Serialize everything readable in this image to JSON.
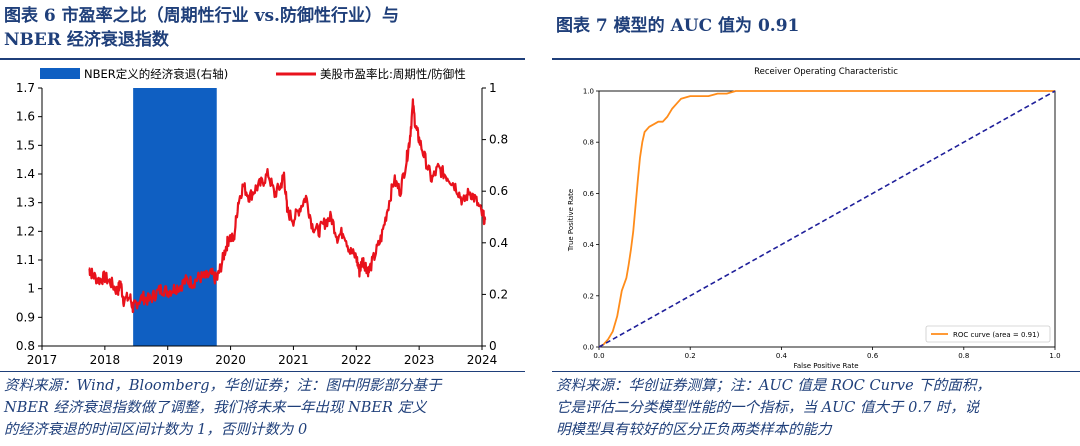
{
  "figure6": {
    "title_line1": "图表 6  市盈率之比（周期性行业 vs.防御性行业）与",
    "title_line2": "NBER 经济衰退指数",
    "source_line1": "资料来源：Wind，Bloomberg，华创证券；注：图中阴影部分基于",
    "source_line2": "NBER 经济衰退指数做了调整，我们将未来一年出现 NBER 定义",
    "source_line3": "的经济衰退的时间区间计数为 1，否则计数为 0"
  },
  "figure7": {
    "title": "图表 7  模型的 AUC 值为 0.91",
    "source_line1": "资料来源：华创证券测算；注：AUC 值是 ROC Curve 下的面积，",
    "source_line2": "它是评估二分类模型性能的一个指标，当 AUC 值大于 0.7 时，说",
    "source_line3": "明模型具有较好的区分正负两类样本的能力"
  },
  "chart_data": [
    {
      "type": "line",
      "legend": [
        "NBER定义的经济衰退(右轴)",
        "美股市盈率比:周期性/防御性"
      ],
      "legend_placement": "top",
      "x_ticks": [
        "2017",
        "2018",
        "2019",
        "2020",
        "2021",
        "2022",
        "2023",
        "2024"
      ],
      "xlim": [
        2017,
        2024
      ],
      "y_left_ticks": [
        "0.8",
        "0.9",
        "1",
        "1.1",
        "1.2",
        "1.3",
        "1.4",
        "1.5",
        "1.6",
        "1.7"
      ],
      "ylim_left": [
        0.8,
        1.7
      ],
      "y_right_ticks": [
        "0",
        "0.2",
        "0.4",
        "0.6",
        "0.8",
        "1"
      ],
      "ylim_right": [
        0,
        1
      ],
      "recession_band": {
        "series": "NBER定义的经济衰退(右轴)",
        "x_start": 2018.45,
        "x_end": 2019.78,
        "value": 1,
        "color": "#0f5fc2"
      },
      "series": [
        {
          "name": "美股市盈率比:周期性/防御性",
          "color": "#e8121c",
          "x": [
            2017.75,
            2017.8,
            2017.9,
            2018.0,
            2018.1,
            2018.2,
            2018.25,
            2018.3,
            2018.4,
            2018.45,
            2018.5,
            2018.6,
            2018.7,
            2018.8,
            2018.9,
            2019.0,
            2019.1,
            2019.2,
            2019.3,
            2019.4,
            2019.5,
            2019.6,
            2019.7,
            2019.78,
            2019.85,
            2019.92,
            2019.98,
            2020.05,
            2020.12,
            2020.2,
            2020.3,
            2020.4,
            2020.5,
            2020.6,
            2020.7,
            2020.8,
            2020.85,
            2020.9,
            2021.0,
            2021.1,
            2021.2,
            2021.3,
            2021.4,
            2021.5,
            2021.6,
            2021.7,
            2021.8,
            2021.9,
            2022.0,
            2022.05,
            2022.1,
            2022.15,
            2022.2,
            2022.3,
            2022.4,
            2022.5,
            2022.6,
            2022.7,
            2022.8,
            2022.85,
            2022.9,
            2022.95,
            2023.0,
            2023.1,
            2023.2,
            2023.3,
            2023.4,
            2023.5,
            2023.6,
            2023.7,
            2023.8,
            2023.9,
            2024.0,
            2024.05
          ],
          "values": [
            1.07,
            1.05,
            1.03,
            1.04,
            1.02,
            0.99,
            1.02,
            0.96,
            0.97,
            0.93,
            0.95,
            0.97,
            0.96,
            0.98,
            1.0,
            0.99,
            1.0,
            1.01,
            1.03,
            1.02,
            1.04,
            1.04,
            1.05,
            1.03,
            1.08,
            1.14,
            1.18,
            1.17,
            1.3,
            1.36,
            1.32,
            1.35,
            1.37,
            1.4,
            1.33,
            1.36,
            1.4,
            1.27,
            1.24,
            1.28,
            1.32,
            1.22,
            1.2,
            1.23,
            1.25,
            1.18,
            1.2,
            1.13,
            1.11,
            1.06,
            1.1,
            1.08,
            1.06,
            1.12,
            1.18,
            1.28,
            1.38,
            1.34,
            1.45,
            1.52,
            1.64,
            1.56,
            1.52,
            1.45,
            1.38,
            1.42,
            1.4,
            1.38,
            1.35,
            1.3,
            1.34,
            1.31,
            1.26,
            1.24
          ]
        }
      ]
    },
    {
      "type": "line",
      "title": "Receiver Operating Characteristic",
      "xlabel": "False Positive Rate",
      "ylabel": "True Positive Rate",
      "xlim": [
        0,
        1
      ],
      "ylim": [
        0,
        1
      ],
      "x_ticks": [
        "0.0",
        "0.2",
        "0.4",
        "0.6",
        "0.8",
        "1.0"
      ],
      "y_ticks": [
        "0.0",
        "0.2",
        "0.4",
        "0.6",
        "0.8",
        "1.0"
      ],
      "legend": "ROC curve (area = 0.91)",
      "legend_placement": "lower right",
      "series": [
        {
          "name": "ROC curve (area = 0.91)",
          "color": "#ff8c1a",
          "x": [
            0,
            0.01,
            0.02,
            0.03,
            0.04,
            0.05,
            0.06,
            0.065,
            0.07,
            0.075,
            0.08,
            0.085,
            0.09,
            0.095,
            0.1,
            0.11,
            0.12,
            0.13,
            0.14,
            0.15,
            0.16,
            0.17,
            0.18,
            0.2,
            0.22,
            0.24,
            0.26,
            0.28,
            0.3,
            0.5,
            0.7,
            1.0
          ],
          "y": [
            0,
            0.01,
            0.03,
            0.06,
            0.12,
            0.22,
            0.27,
            0.32,
            0.38,
            0.45,
            0.55,
            0.65,
            0.74,
            0.8,
            0.84,
            0.86,
            0.87,
            0.88,
            0.88,
            0.9,
            0.93,
            0.95,
            0.97,
            0.98,
            0.98,
            0.98,
            0.99,
            0.99,
            1.0,
            1.0,
            1.0,
            1.0
          ]
        },
        {
          "name": "",
          "color": "#1f1f9a",
          "dashed": true,
          "x": [
            0,
            1
          ],
          "y": [
            0,
            1
          ]
        }
      ]
    }
  ]
}
